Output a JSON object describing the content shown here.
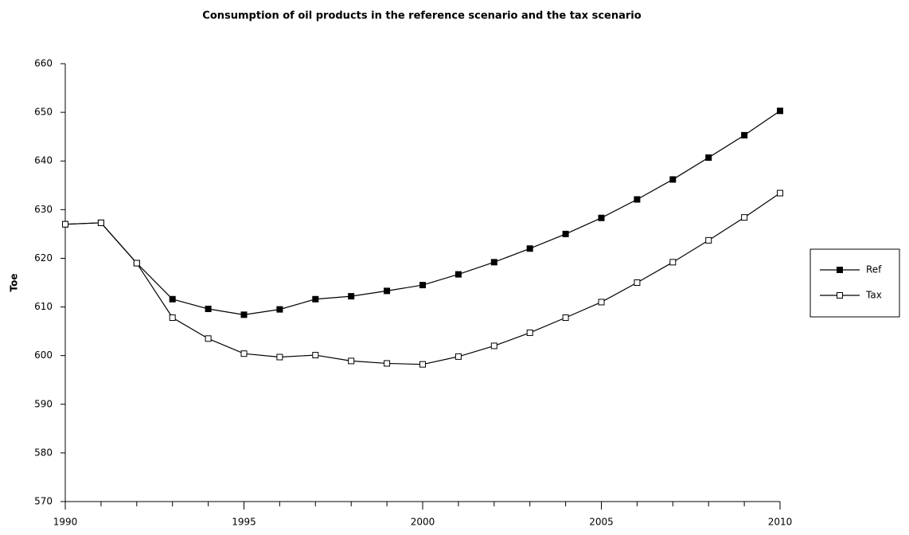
{
  "chart_data": {
    "type": "line",
    "title": "Consumption of oil products in the reference scenario and the tax scenario",
    "y_label": "Toe",
    "x": [
      1990,
      1991,
      1992,
      1993,
      1994,
      1995,
      1996,
      1997,
      1998,
      1999,
      2000,
      2001,
      2002,
      2003,
      2004,
      2005,
      2006,
      2007,
      2008,
      2009,
      2010
    ],
    "series": [
      {
        "name": "Ref",
        "color": "#000000",
        "marker": "filled-square",
        "values": [
          627,
          627.3,
          619,
          611.6,
          609.6,
          608.4,
          609.5,
          611.6,
          612.2,
          613.3,
          614.5,
          616.7,
          619.2,
          622,
          625,
          628.3,
          632.1,
          636.2,
          640.7,
          645.3,
          650.3
        ]
      },
      {
        "name": "Tax",
        "color": "#000000",
        "marker": "open-square",
        "values": [
          627,
          627.3,
          619,
          607.8,
          603.5,
          600.4,
          599.7,
          600.1,
          598.9,
          598.4,
          598.2,
          599.8,
          602,
          604.7,
          607.8,
          611,
          615,
          619.2,
          623.7,
          628.4,
          633.4
        ]
      }
    ],
    "xlim": [
      1990,
      2010
    ],
    "xticks": [
      1990,
      1995,
      2000,
      2005,
      2010
    ],
    "ylim": [
      570,
      660
    ],
    "yticks": [
      570,
      580,
      590,
      600,
      610,
      620,
      630,
      640,
      650,
      660
    ],
    "grid": false,
    "legend": "right"
  }
}
